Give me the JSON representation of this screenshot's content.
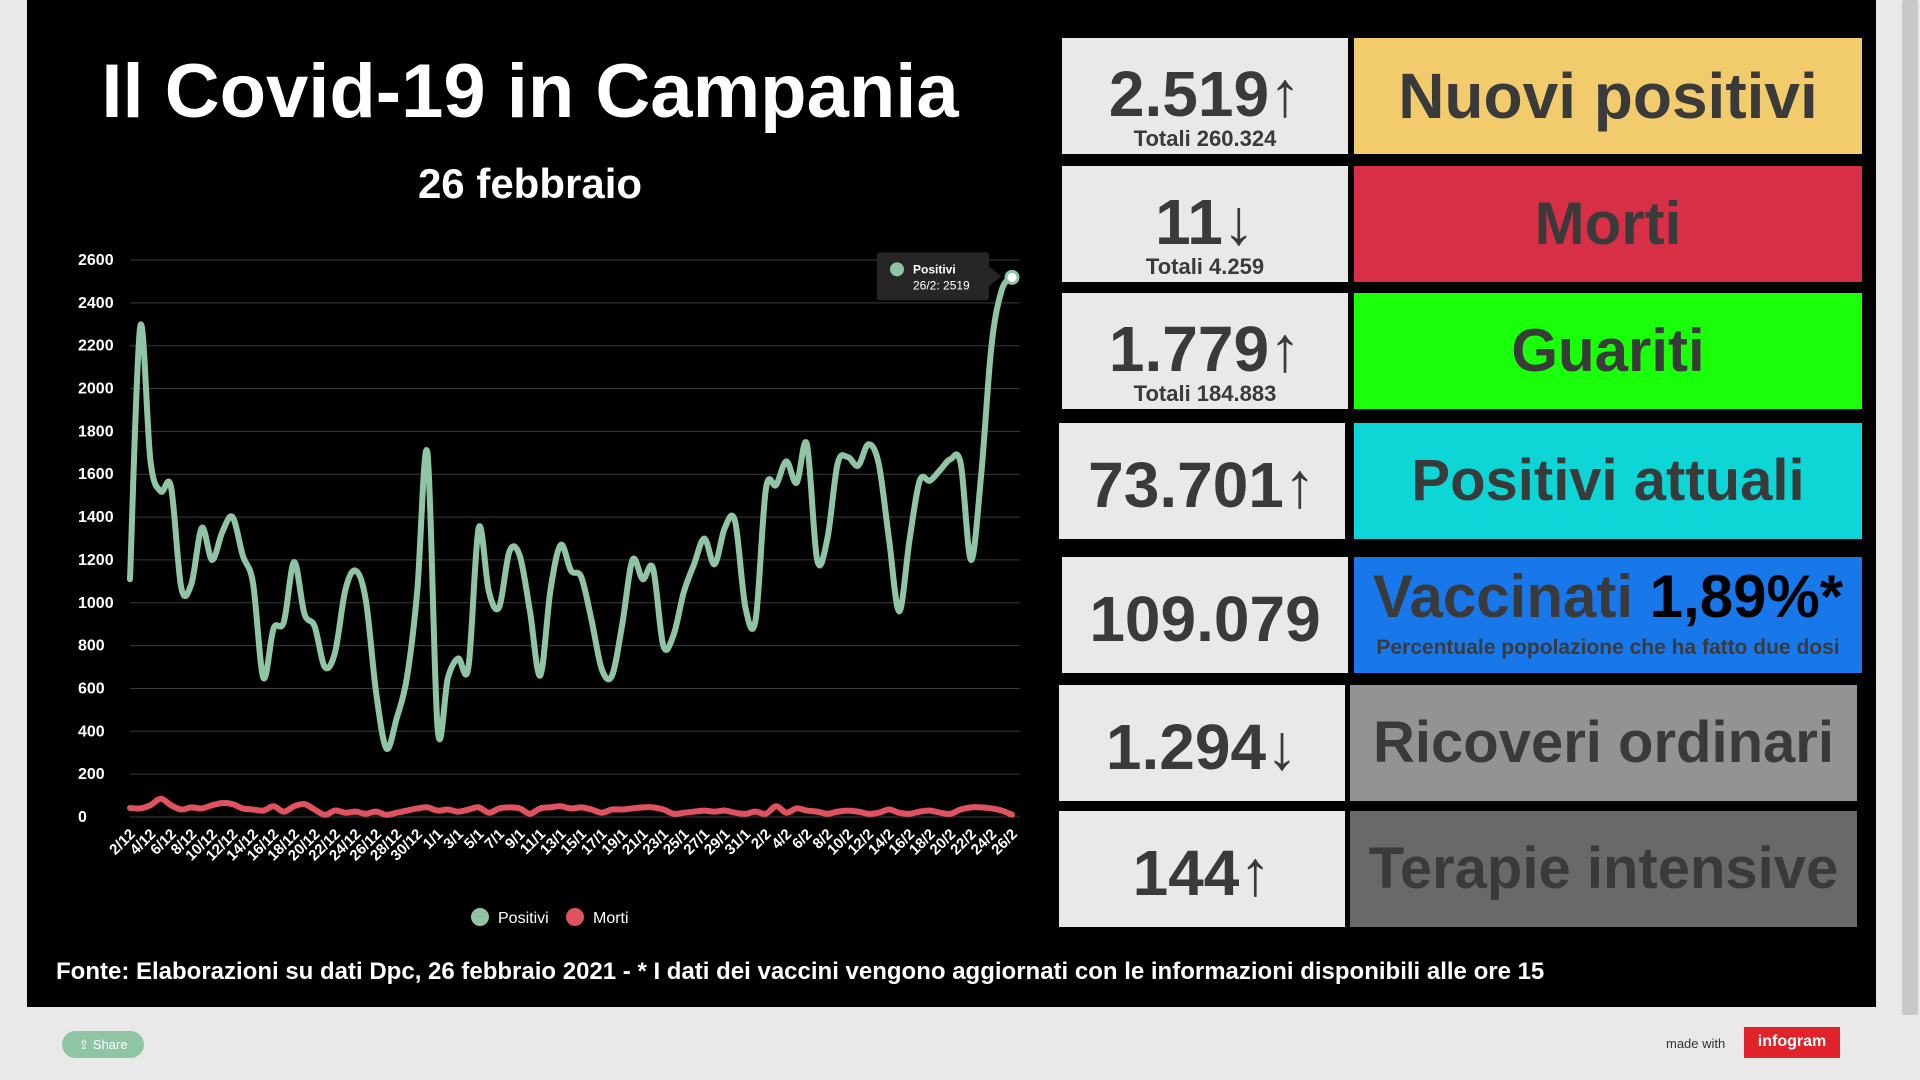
{
  "header": {
    "title": "Il Covid-19 in Campania",
    "date": "26 febbraio"
  },
  "stats": [
    {
      "value": "2.519",
      "arrow": "↑",
      "total": "Totali 260.324",
      "label": "Nuovi positivi",
      "color": "#f1cb6c"
    },
    {
      "value": "11",
      "arrow": "↓",
      "total": "Totali 4.259",
      "label": "Morti",
      "color": "#d62f46"
    },
    {
      "value": "1.779",
      "arrow": "↑",
      "total": "Totali 184.883",
      "label": "Guariti",
      "color": "#1aff0a"
    },
    {
      "value": "73.701",
      "arrow": "↑",
      "total": "",
      "label": "Positivi attuali",
      "color": "#0fd6d6"
    },
    {
      "value": "109.079",
      "arrow": "",
      "total": "",
      "label": "Vaccinati",
      "label_strong": "1,89%*",
      "note": "Percentuale popolazione che ha fatto due dosi",
      "color": "#1877e9"
    },
    {
      "value": "1.294",
      "arrow": "↓",
      "total": "",
      "label": "Ricoveri ordinari",
      "color": "#939393"
    },
    {
      "value": "144",
      "arrow": "↑",
      "total": "",
      "label": "Terapie intensive",
      "color": "#6b6868"
    }
  ],
  "footer": {
    "source": "Fonte: Elaborazioni su dati Dpc, 26 febbraio 2021 - * I dati dei vaccini vengono aggiornati con le informazioni disponibili alle ore 15"
  },
  "bottom": {
    "share": "Share",
    "made_with": "made with",
    "brand": "infogram"
  },
  "chart_data": {
    "type": "line",
    "x": [
      "2/12",
      "3/12",
      "4/12",
      "5/12",
      "6/12",
      "7/12",
      "8/12",
      "9/12",
      "10/12",
      "11/12",
      "12/12",
      "13/12",
      "14/12",
      "15/12",
      "16/12",
      "17/12",
      "18/12",
      "19/12",
      "20/12",
      "21/12",
      "22/12",
      "23/12",
      "24/12",
      "25/12",
      "26/12",
      "27/12",
      "28/12",
      "29/12",
      "30/12",
      "31/12",
      "1/1",
      "2/1",
      "3/1",
      "4/1",
      "5/1",
      "6/1",
      "7/1",
      "8/1",
      "9/1",
      "10/1",
      "11/1",
      "12/1",
      "13/1",
      "14/1",
      "15/1",
      "16/1",
      "17/1",
      "18/1",
      "19/1",
      "20/1",
      "21/1",
      "22/1",
      "23/1",
      "24/1",
      "25/1",
      "26/1",
      "27/1",
      "28/1",
      "29/1",
      "30/1",
      "31/1",
      "1/2",
      "2/2",
      "3/2",
      "4/2",
      "5/2",
      "6/2",
      "7/2",
      "8/2",
      "9/2",
      "10/2",
      "11/2",
      "12/2",
      "13/2",
      "14/2",
      "15/2",
      "16/2",
      "17/2",
      "18/2",
      "19/2",
      "20/2",
      "21/2",
      "22/2",
      "23/2",
      "24/2",
      "25/2",
      "26/2"
    ],
    "x_tick_labels": [
      "2/12",
      "4/12",
      "6/12",
      "8/12",
      "10/12",
      "12/12",
      "14/12",
      "16/12",
      "18/12",
      "20/12",
      "22/12",
      "24/12",
      "26/12",
      "28/12",
      "30/12",
      "1/1",
      "3/1",
      "5/1",
      "7/1",
      "9/1",
      "11/1",
      "13/1",
      "15/1",
      "17/1",
      "19/1",
      "21/1",
      "23/1",
      "25/1",
      "27/1",
      "29/1",
      "31/1",
      "2/2",
      "4/2",
      "6/2",
      "8/2",
      "10/2",
      "12/2",
      "14/2",
      "16/2",
      "18/2",
      "20/2",
      "22/2",
      "24/2",
      "26/2"
    ],
    "series": [
      {
        "name": "Positivi",
        "color": "#8fc4a5",
        "values": [
          1110,
          2290,
          1660,
          1520,
          1540,
          1070,
          1090,
          1350,
          1200,
          1330,
          1400,
          1220,
          1090,
          650,
          880,
          910,
          1190,
          950,
          890,
          700,
          770,
          1060,
          1150,
          1010,
          580,
          320,
          460,
          650,
          1050,
          1700,
          410,
          650,
          740,
          700,
          1350,
          1050,
          980,
          1240,
          1220,
          960,
          660,
          1060,
          1270,
          1150,
          1120,
          920,
          690,
          660,
          900,
          1200,
          1110,
          1160,
          800,
          850,
          1050,
          1180,
          1300,
          1180,
          1350,
          1380,
          980,
          920,
          1530,
          1550,
          1660,
          1560,
          1740,
          1200,
          1300,
          1650,
          1680,
          1640,
          1740,
          1650,
          1300,
          960,
          1290,
          1570,
          1570,
          1620,
          1670,
          1650,
          1200,
          1600,
          2200,
          2460,
          2519
        ]
      },
      {
        "name": "Morti",
        "color": "#e05260",
        "values": [
          42,
          40,
          55,
          85,
          55,
          35,
          45,
          40,
          55,
          65,
          60,
          40,
          35,
          30,
          50,
          25,
          50,
          60,
          35,
          10,
          30,
          20,
          25,
          15,
          25,
          10,
          20,
          30,
          40,
          45,
          30,
          35,
          25,
          35,
          45,
          20,
          40,
          45,
          40,
          15,
          40,
          45,
          50,
          40,
          45,
          35,
          20,
          35,
          35,
          40,
          45,
          45,
          35,
          15,
          20,
          25,
          30,
          25,
          30,
          20,
          15,
          25,
          15,
          50,
          20,
          40,
          30,
          25,
          15,
          25,
          30,
          25,
          15,
          20,
          35,
          20,
          15,
          25,
          30,
          20,
          15,
          35,
          45,
          45,
          40,
          30,
          11
        ]
      }
    ],
    "ylim": [
      0,
      2600
    ],
    "yticks": [
      0,
      200,
      400,
      600,
      800,
      1000,
      1200,
      1400,
      1600,
      1800,
      2000,
      2200,
      2400,
      2600
    ],
    "grid": true,
    "legend": "bottom",
    "tooltip": {
      "series": "Positivi",
      "text": "26/2: 2519"
    }
  }
}
